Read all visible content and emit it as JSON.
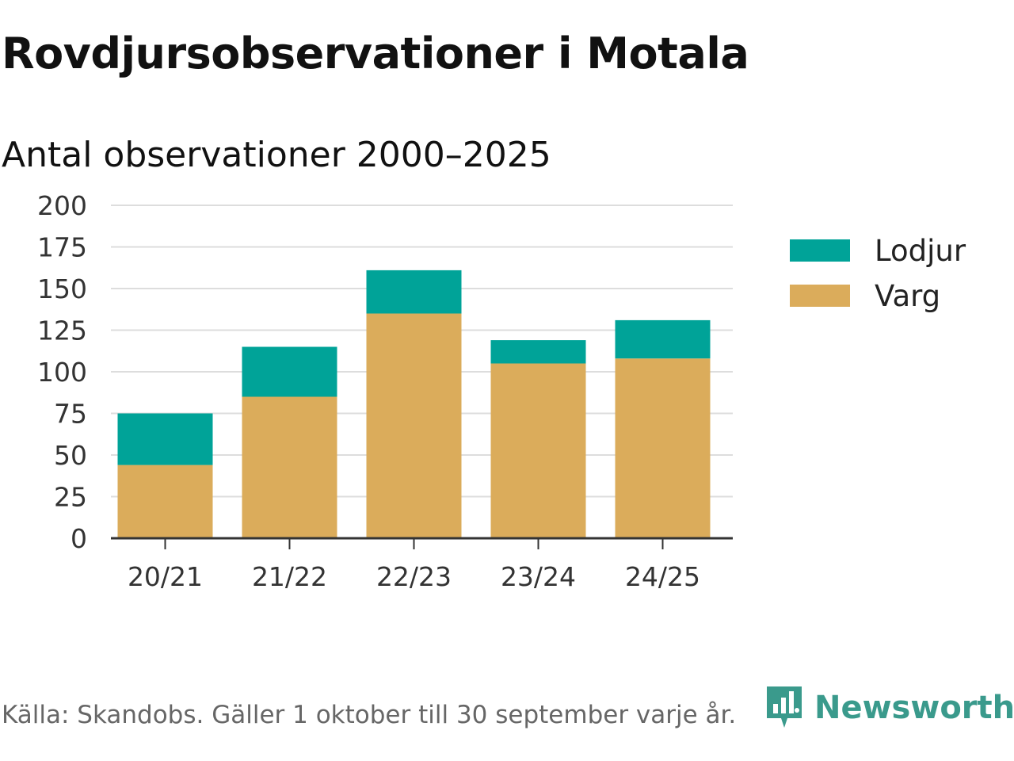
{
  "header": {
    "title": "Rovdjursobservationer i Motala",
    "subtitle": "Antal observationer 2000–2025"
  },
  "footer": {
    "source": "Källa: Skandobs. Gäller 1 oktober till 30 september varje år.",
    "brand": "Newsworthy",
    "brand_icon": "newsworthy-logo-icon"
  },
  "colors": {
    "lodjur": "#00a398",
    "varg": "#dbac5b",
    "grid": "#dddddd",
    "axis": "#333333",
    "brand": "#3a9a8c"
  },
  "chart_data": {
    "type": "bar",
    "stacked": true,
    "categories": [
      "20/21",
      "21/22",
      "22/23",
      "23/24",
      "24/25"
    ],
    "series": [
      {
        "name": "Varg",
        "values": [
          44,
          85,
          135,
          105,
          108
        ]
      },
      {
        "name": "Lodjur",
        "values": [
          31,
          30,
          26,
          14,
          23
        ]
      }
    ],
    "ylim": [
      0,
      200
    ],
    "yticks": [
      0,
      25,
      50,
      75,
      100,
      125,
      150,
      175,
      200
    ],
    "title": "Rovdjursobservationer i Motala",
    "subtitle": "Antal observationer 2000–2025",
    "xlabel": "",
    "ylabel": "",
    "legend": [
      "Lodjur",
      "Varg"
    ],
    "legend_position": "right",
    "grid": true
  }
}
